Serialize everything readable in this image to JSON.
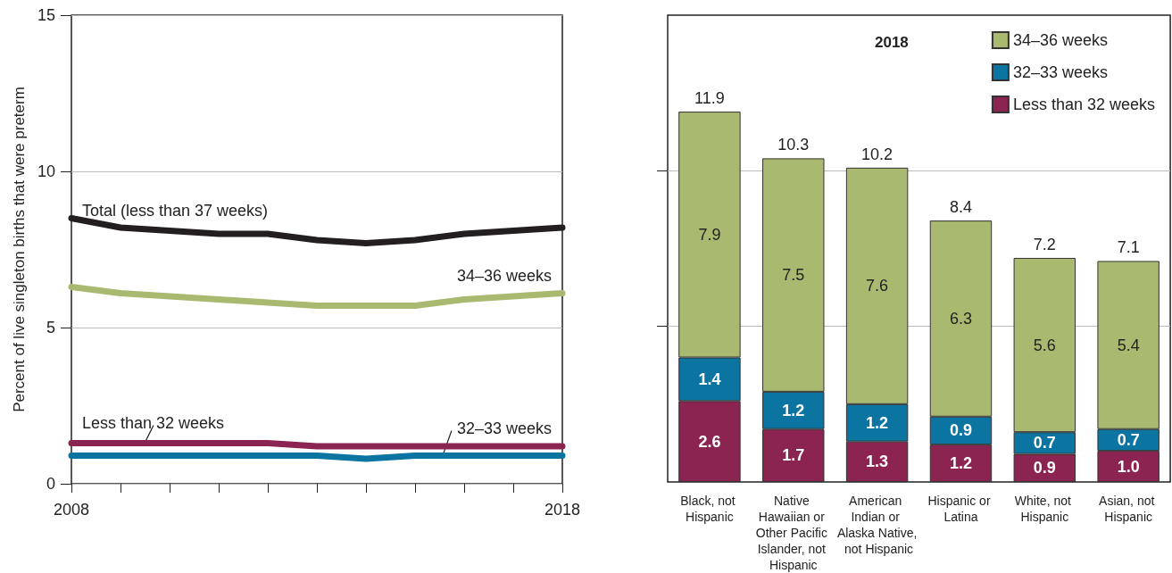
{
  "chart_data": [
    {
      "type": "line",
      "ylabel": "Percent of live singleton births that were preterm",
      "x": [
        2008,
        2009,
        2010,
        2011,
        2012,
        2013,
        2014,
        2015,
        2016,
        2017,
        2018
      ],
      "series": [
        {
          "name": "Total (less than 37 weeks)",
          "color": "#231f20",
          "values": [
            8.5,
            8.2,
            8.1,
            8.0,
            8.0,
            7.8,
            7.7,
            7.8,
            8.0,
            8.1,
            8.2
          ]
        },
        {
          "name": "34–36 weeks",
          "color": "#a9b96f",
          "values": [
            6.3,
            6.1,
            6.0,
            5.9,
            5.8,
            5.7,
            5.7,
            5.7,
            5.9,
            6.0,
            6.1
          ]
        },
        {
          "name": "Less than 32 weeks",
          "color": "#8c2452",
          "values": [
            1.3,
            1.3,
            1.3,
            1.3,
            1.3,
            1.2,
            1.2,
            1.2,
            1.2,
            1.2,
            1.2
          ]
        },
        {
          "name": "32–33 weeks",
          "color": "#0b74a0",
          "values": [
            0.9,
            0.9,
            0.9,
            0.9,
            0.9,
            0.9,
            0.8,
            0.9,
            0.9,
            0.9,
            0.9
          ]
        }
      ],
      "xlim": [
        2008,
        2018
      ],
      "xticks": [
        2008,
        {
          "value": 2009,
          "label": null
        },
        {
          "value": 2010,
          "label": null
        },
        {
          "value": 2011,
          "label": null
        },
        {
          "value": 2012,
          "label": null
        },
        {
          "value": 2013,
          "label": null
        },
        {
          "value": 2014,
          "label": null
        },
        {
          "value": 2015,
          "label": null
        },
        {
          "value": 2016,
          "label": null
        },
        {
          "value": 2017,
          "label": null
        },
        2018
      ],
      "ylim": [
        0,
        15
      ],
      "yticks": [
        0,
        5,
        10,
        15
      ],
      "grid": "y",
      "line_style": "solid"
    },
    {
      "type": "bar",
      "stacked": true,
      "legend_title": "2018",
      "legend": "top right",
      "categories": [
        "Black, not Hispanic",
        "Native Hawaiian or Other Pacific Islander, not Hispanic",
        "American Indian or Alaska Native, not Hispanic",
        "Hispanic or Latina",
        "White, not Hispanic",
        "Asian, not Hispanic"
      ],
      "series": [
        {
          "name": "Less than 32 weeks",
          "color": "#8c2452",
          "values": [
            2.6,
            1.7,
            1.3,
            1.2,
            0.9,
            1.0
          ],
          "value_labels": [
            "2.6",
            "1.7",
            "1.3",
            "1.2",
            "0.9",
            "1.0"
          ]
        },
        {
          "name": "32–33 weeks",
          "color": "#0b74a0",
          "values": [
            1.4,
            1.2,
            1.2,
            0.9,
            0.7,
            0.7
          ],
          "value_labels": [
            "1.4",
            "1.2",
            "1.2",
            "0.9",
            "0.7",
            "0.7"
          ]
        },
        {
          "name": "34–36 weeks",
          "color": "#a9b96f",
          "values": [
            7.9,
            7.5,
            7.6,
            6.3,
            5.6,
            5.4
          ],
          "value_labels": [
            "7.9",
            "7.5",
            "7.6",
            "6.3",
            "5.6",
            "5.4"
          ]
        }
      ],
      "totals": [
        "11.9",
        "10.3",
        "10.2",
        "8.4",
        "7.2",
        "7.1"
      ],
      "ylim": [
        0,
        15
      ],
      "yticks": [
        5,
        10
      ],
      "tick_labels": "x",
      "grid": "y",
      "data_labels": true
    }
  ]
}
